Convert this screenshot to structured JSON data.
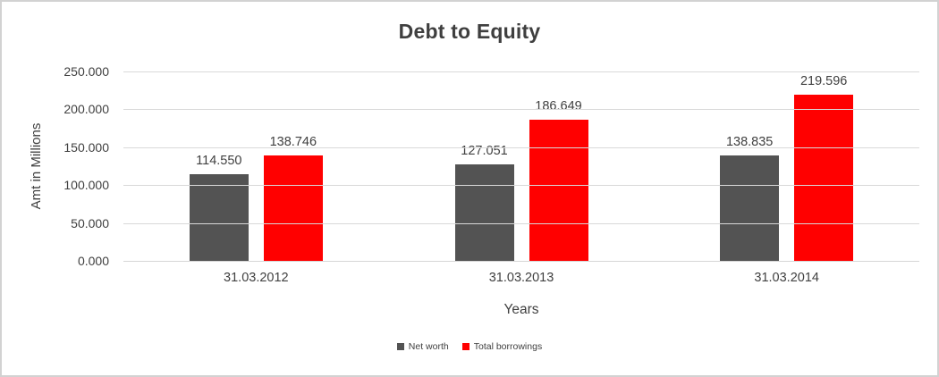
{
  "window": {
    "background": "#ffffff",
    "border_color": "#d2d2d2"
  },
  "chart_data": {
    "type": "bar",
    "title": "Debt to Equity",
    "xlabel": "Years",
    "ylabel": "Amt in Millions",
    "categories": [
      "31.03.2012",
      "31.03.2013",
      "31.03.2014"
    ],
    "series": [
      {
        "name": "Net worth",
        "color": "#535353",
        "values": [
          114.55,
          127.051,
          138.835
        ],
        "value_labels": [
          "114.550",
          "127.051",
          "138.835"
        ]
      },
      {
        "name": "Total borrowings",
        "color": "#ff0000",
        "values": [
          138.746,
          186.649,
          219.596
        ],
        "value_labels": [
          "138.746",
          "186.649",
          "219.596"
        ]
      }
    ],
    "ylim": [
      0,
      250
    ],
    "y_ticks": [
      {
        "value": 250,
        "label": "250.000"
      },
      {
        "value": 200,
        "label": "200.000"
      },
      {
        "value": 150,
        "label": "150.000"
      },
      {
        "value": 100,
        "label": "100.000"
      },
      {
        "value": 50,
        "label": "50.000"
      },
      {
        "value": 0,
        "label": "0.000"
      }
    ],
    "grid": true,
    "legend_position": "bottom",
    "gridline_color": "#d9d9d9",
    "text_color": "#404040",
    "title_color": "#3f3f3f"
  }
}
